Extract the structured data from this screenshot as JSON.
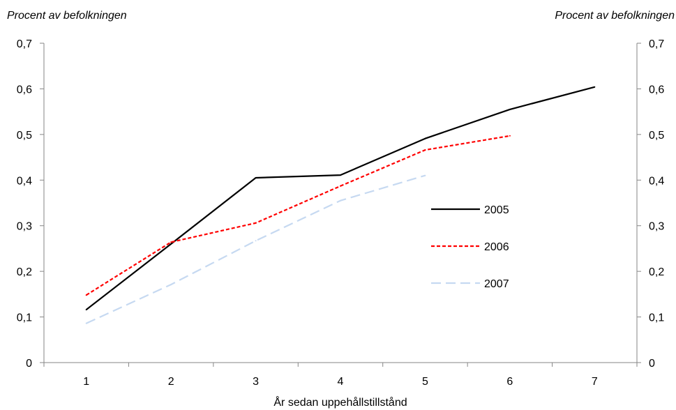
{
  "chart_data": {
    "type": "line",
    "ylabel_left": "Procent av befolkningen",
    "ylabel_right": "Procent av befolkningen",
    "xlabel": "År sedan uppehållstillstånd",
    "categories": [
      "1",
      "2",
      "3",
      "4",
      "5",
      "6",
      "7"
    ],
    "ylim": [
      0,
      0.7
    ],
    "yticks": [
      "0",
      "0,1",
      "0,2",
      "0,3",
      "0,4",
      "0,5",
      "0,6",
      "0,7"
    ],
    "grid": false,
    "dual_y_axis": true,
    "legend_position": "right-center inside plot",
    "axis_color": "#868686",
    "series": [
      {
        "name": "2005",
        "values": [
          0.116,
          0.26,
          0.405,
          0.411,
          0.491,
          0.555,
          0.604
        ],
        "color": "#000000",
        "line_style": "solid"
      },
      {
        "name": "2006",
        "values": [
          0.148,
          0.264,
          0.306,
          0.387,
          0.466,
          0.497,
          null
        ],
        "color": "#ff0000",
        "line_style": "dashed"
      },
      {
        "name": "2007",
        "values": [
          0.086,
          0.171,
          0.267,
          0.355,
          0.41,
          null,
          null
        ],
        "color": "#c6d9f1",
        "line_style": "long-dash"
      }
    ]
  }
}
